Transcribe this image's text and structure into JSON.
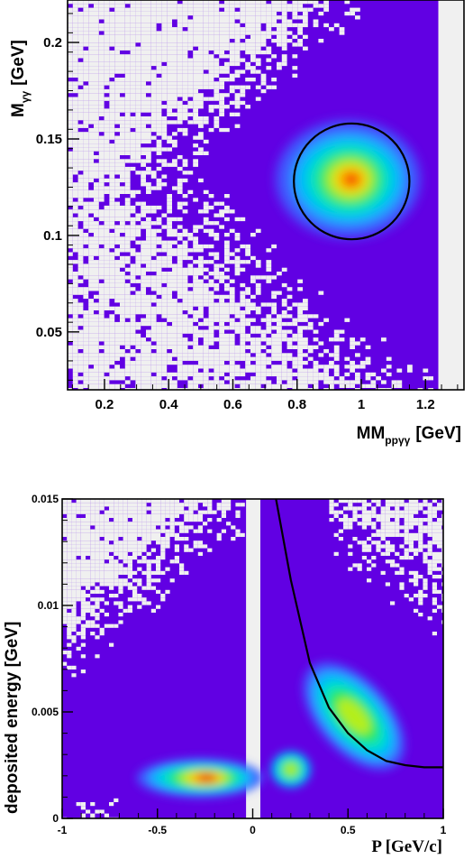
{
  "chart_data": [
    {
      "type": "heatmap",
      "panel": "top",
      "xlabel": "MM",
      "xlabel_sub": "ppγγ",
      "xlabel_unit": "[GeV]",
      "ylabel": "M",
      "ylabel_sub": "γγ",
      "ylabel_unit": "[GeV]",
      "xlim": [
        0.085,
        1.32
      ],
      "ylim": [
        0.02,
        0.222
      ],
      "xticks": [
        {
          "value": 0.2,
          "label": "0.2"
        },
        {
          "value": 0.4,
          "label": "0.4"
        },
        {
          "value": 0.6,
          "label": "0.6"
        },
        {
          "value": 0.8,
          "label": "0.8"
        },
        {
          "value": 1.0,
          "label": "1"
        },
        {
          "value": 1.2,
          "label": "1.2"
        }
      ],
      "yticks": [
        {
          "value": 0.05,
          "label": "0.05"
        },
        {
          "value": 0.1,
          "label": "0.1"
        },
        {
          "value": 0.15,
          "label": "0.15"
        },
        {
          "value": 0.2,
          "label": "0.2"
        }
      ],
      "peak": {
        "x": 0.97,
        "y": 0.13
      },
      "selection_circle": {
        "center_x": 0.97,
        "center_y": 0.128,
        "radius_x": 0.18,
        "radius_y": 0.03
      },
      "empty_region_x_min": 1.24,
      "colors": {
        "background": "#6100e3",
        "empty": "#f0f0f0",
        "curve": "#000000"
      }
    },
    {
      "type": "heatmap",
      "panel": "bottom",
      "xlabel": "P [GeV/c]",
      "ylabel": "deposited energy [GeV]",
      "xlim": [
        -1,
        1
      ],
      "ylim": [
        0,
        0.015
      ],
      "xticks": [
        {
          "value": -1,
          "label": "-1"
        },
        {
          "value": -0.5,
          "label": "-0.5"
        },
        {
          "value": 0,
          "label": "0"
        },
        {
          "value": 0.5,
          "label": "0.5"
        },
        {
          "value": 1,
          "label": "1"
        }
      ],
      "yticks": [
        {
          "value": 0,
          "label": "0"
        },
        {
          "value": 0.005,
          "label": "0.005"
        },
        {
          "value": 0.01,
          "label": "0.01"
        },
        {
          "value": 0.015,
          "label": "0.015"
        }
      ],
      "clusters": [
        {
          "x": -0.24,
          "y": 0.0019
        },
        {
          "x": 0.2,
          "y": 0.0023
        },
        {
          "x": 0.55,
          "y": 0.0048
        }
      ],
      "cut_curve": {
        "x": [
          0.12,
          0.2,
          0.3,
          0.4,
          0.5,
          0.6,
          0.7,
          0.8,
          0.9,
          1.0
        ],
        "y": [
          0.0151,
          0.0112,
          0.0073,
          0.0052,
          0.004,
          0.0032,
          0.0027,
          0.0025,
          0.0024,
          0.0024
        ]
      },
      "colors": {
        "background": "#6100e3",
        "empty": "#f0f0f0",
        "curve": "#000000"
      }
    }
  ]
}
